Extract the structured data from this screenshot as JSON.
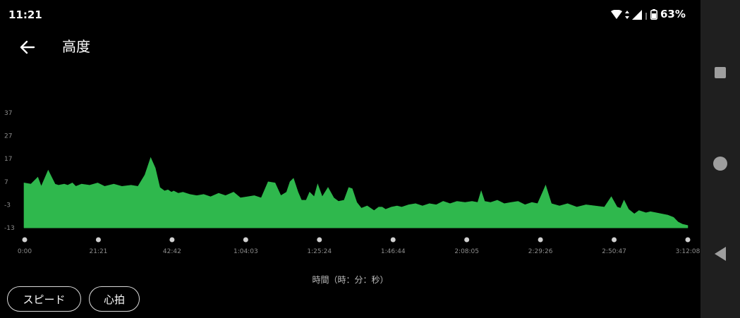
{
  "status_bar": {
    "time": "11:21",
    "battery": "63%"
  },
  "app_bar": {
    "title": "高度"
  },
  "chart_data": {
    "type": "area",
    "title": "",
    "xlabel": "時間（時：分：秒）",
    "ylabel": "",
    "y_ticks": [
      "37",
      "27",
      "17",
      "7",
      "-3",
      "-13"
    ],
    "x_ticks": [
      "0:00",
      "21:21",
      "42:42",
      "1:04:03",
      "1:25:24",
      "1:46:44",
      "2:08:05",
      "2:29:26",
      "2:50:47",
      "3:12:08"
    ],
    "ylim": [
      -13,
      37
    ],
    "xlim_seconds": [
      0,
      11528
    ],
    "color": "#2fb84d",
    "series": [
      {
        "x": [
          0,
          120,
          240,
          300,
          420,
          540,
          600,
          700,
          760,
          840,
          900,
          1000,
          1140,
          1280,
          1400,
          1560,
          1700,
          1860,
          1980,
          2100,
          2200,
          2280,
          2360,
          2440,
          2500,
          2560,
          2600,
          2680,
          2760,
          2880,
          3000,
          3120,
          3240,
          3380,
          3500,
          3640,
          3760,
          3880,
          4000,
          4120,
          4240,
          4360,
          4460,
          4560,
          4620,
          4680,
          4760,
          4820,
          4900,
          4960,
          5040,
          5100,
          5180,
          5280,
          5380,
          5460,
          5560,
          5640,
          5700,
          5780,
          5860,
          5960,
          6080,
          6160,
          6220,
          6280,
          6380,
          6480,
          6560,
          6680,
          6800,
          6920,
          7040,
          7160,
          7280,
          7400,
          7520,
          7660,
          7780,
          7880,
          7940,
          8000,
          8100,
          8220,
          8340,
          8460,
          8580,
          8700,
          8820,
          8920,
          9000,
          9060,
          9160,
          9300,
          9440,
          9600,
          9760,
          9920,
          10080,
          10200,
          10300,
          10360,
          10420,
          10500,
          10600,
          10680,
          10740,
          10800,
          10880,
          10980,
          11080,
          11180,
          11280,
          11360,
          11440,
          11528
        ],
        "y": [
          6.5,
          6.0,
          9.0,
          5.0,
          12.0,
          6.0,
          5.5,
          6.0,
          5.5,
          6.5,
          5.0,
          6.0,
          5.5,
          6.5,
          5.0,
          6.0,
          5.0,
          5.5,
          5.0,
          10.0,
          17.5,
          13.0,
          4.5,
          3.0,
          3.5,
          2.5,
          3.0,
          2.0,
          2.5,
          1.5,
          1.0,
          1.5,
          0.5,
          2.0,
          1.0,
          2.5,
          0.0,
          0.5,
          1.0,
          0.0,
          7.0,
          6.5,
          1.0,
          2.5,
          7.0,
          8.5,
          2.5,
          -1.0,
          -1.0,
          2.5,
          0.5,
          6.0,
          0.5,
          4.5,
          0.0,
          -1.5,
          -1.0,
          4.5,
          4.0,
          -2.0,
          -4.5,
          -3.5,
          -5.5,
          -4.0,
          -4.0,
          -5.0,
          -4.0,
          -3.5,
          -4.0,
          -3.0,
          -2.5,
          -3.5,
          -2.5,
          -3.0,
          -1.5,
          -2.5,
          -1.5,
          -2.0,
          -1.5,
          -2.0,
          3.0,
          -1.5,
          -2.0,
          -1.0,
          -2.5,
          -2.0,
          -1.5,
          -3.0,
          -2.0,
          -2.5,
          2.0,
          5.5,
          -2.5,
          -3.5,
          -2.5,
          -4.0,
          -3.0,
          -3.5,
          -4.0,
          0.5,
          -4.0,
          -4.5,
          -1.0,
          -5.0,
          -7.0,
          -5.5,
          -6.0,
          -6.5,
          -6.0,
          -6.5,
          -7.0,
          -7.5,
          -8.5,
          -10.5,
          -11.5,
          -12.0
        ]
      }
    ]
  }
}
